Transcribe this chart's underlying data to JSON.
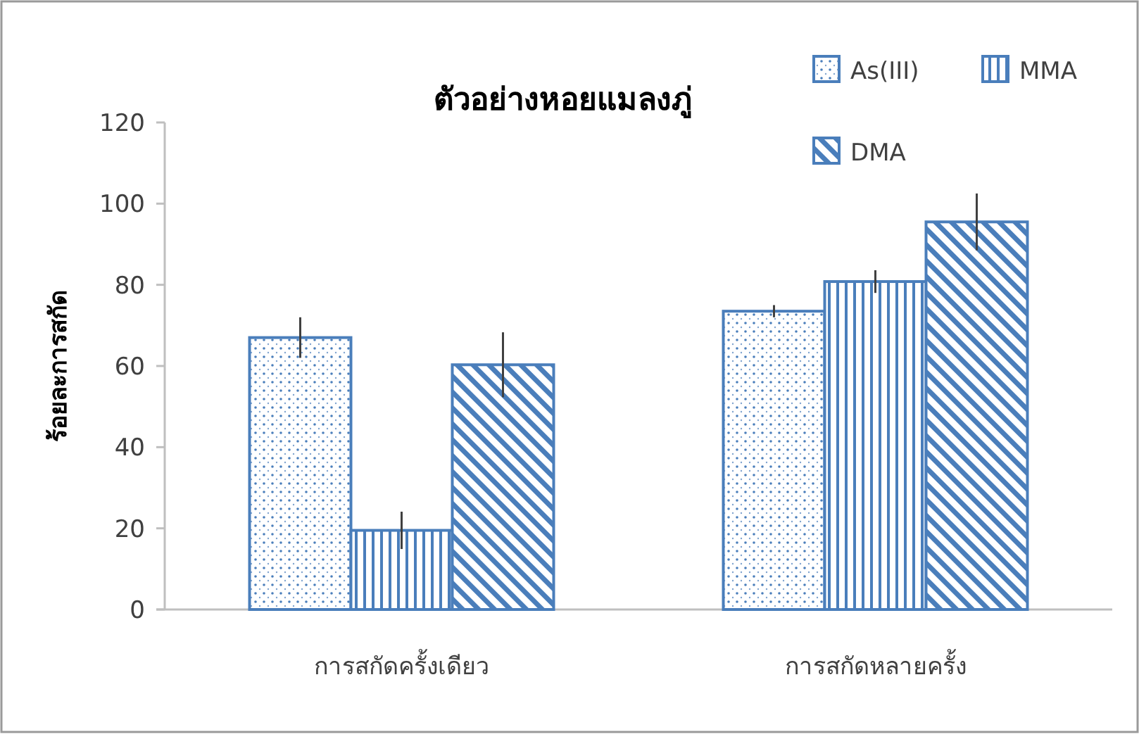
{
  "chart_data": {
    "type": "bar",
    "title": "ตัวอย่างหอยแมลงภู่",
    "ylabel": "ร้อยละการสกัด",
    "categories": [
      "การสกัดครั้งเดียว",
      "การสกัดหลายครั้ง"
    ],
    "series": [
      {
        "name": "As(III)",
        "color": "#4a7ebb",
        "values": [
          67,
          73.5
        ],
        "errors": [
          5,
          1.5
        ]
      },
      {
        "name": "MMA",
        "color": "#4a7ebb",
        "values": [
          19.5,
          80.8
        ],
        "errors": [
          4.6,
          2.8
        ]
      },
      {
        "name": "DMA",
        "color": "#4a7ebb",
        "values": [
          60.3,
          95.5
        ],
        "errors": [
          8,
          7
        ]
      }
    ],
    "ylim": [
      0,
      120
    ],
    "yticks": [
      0,
      20,
      40,
      60,
      80,
      100,
      120
    ],
    "grid": false,
    "legend": "top right"
  }
}
